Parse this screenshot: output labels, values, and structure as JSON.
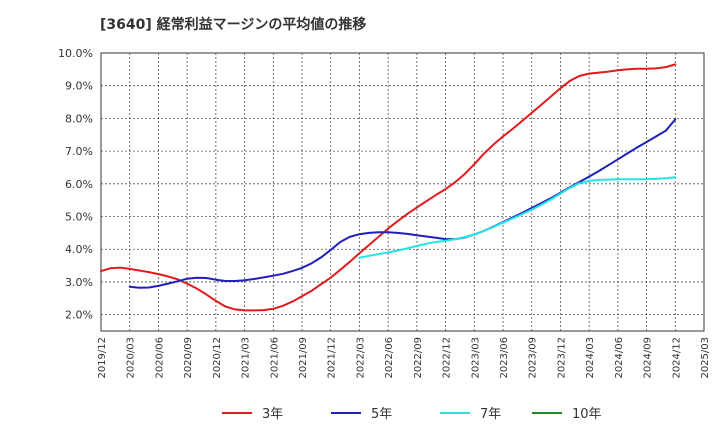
{
  "chart_data": {
    "type": "line",
    "title": "[3640]  経常利益マージンの平均値の推移",
    "xlabel": "",
    "ylabel": "",
    "ylim": [
      1.5,
      10.0
    ],
    "yticks": [
      "2.0%",
      "3.0%",
      "4.0%",
      "5.0%",
      "6.0%",
      "7.0%",
      "8.0%",
      "9.0%",
      "10.0%"
    ],
    "ytick_values": [
      2,
      3,
      4,
      5,
      6,
      7,
      8,
      9,
      10
    ],
    "xticks": [
      "2019/12",
      "2020/03",
      "2020/06",
      "2020/09",
      "2020/12",
      "2021/03",
      "2021/06",
      "2021/09",
      "2021/12",
      "2022/03",
      "2022/06",
      "2022/09",
      "2022/12",
      "2023/03",
      "2023/06",
      "2023/09",
      "2023/12",
      "2024/03",
      "2024/06",
      "2024/09",
      "2024/12",
      "2025/03"
    ],
    "grid": true,
    "legend_position": "bottom",
    "series": [
      {
        "name": "3年",
        "color": "#e31a1c",
        "values": [
          [
            "2019/12",
            3.33
          ],
          [
            "2020/01",
            3.42
          ],
          [
            "2020/02",
            3.44
          ],
          [
            "2020/03",
            3.4
          ],
          [
            "2020/04",
            3.35
          ],
          [
            "2020/05",
            3.3
          ],
          [
            "2020/06",
            3.24
          ],
          [
            "2020/07",
            3.17
          ],
          [
            "2020/08",
            3.08
          ],
          [
            "2020/09",
            2.95
          ],
          [
            "2020/10",
            2.8
          ],
          [
            "2020/11",
            2.62
          ],
          [
            "2020/12",
            2.42
          ],
          [
            "2021/01",
            2.25
          ],
          [
            "2021/02",
            2.16
          ],
          [
            "2021/03",
            2.13
          ],
          [
            "2021/04",
            2.13
          ],
          [
            "2021/05",
            2.14
          ],
          [
            "2021/06",
            2.18
          ],
          [
            "2021/07",
            2.27
          ],
          [
            "2021/08",
            2.4
          ],
          [
            "2021/09",
            2.56
          ],
          [
            "2021/10",
            2.73
          ],
          [
            "2021/11",
            2.93
          ],
          [
            "2021/12",
            3.13
          ],
          [
            "2022/01",
            3.37
          ],
          [
            "2022/02",
            3.62
          ],
          [
            "2022/03",
            3.88
          ],
          [
            "2022/04",
            4.13
          ],
          [
            "2022/05",
            4.38
          ],
          [
            "2022/06",
            4.63
          ],
          [
            "2022/07",
            4.86
          ],
          [
            "2022/08",
            5.08
          ],
          [
            "2022/09",
            5.28
          ],
          [
            "2022/10",
            5.47
          ],
          [
            "2022/11",
            5.66
          ],
          [
            "2022/12",
            5.84
          ],
          [
            "2023/01",
            6.05
          ],
          [
            "2023/02",
            6.3
          ],
          [
            "2023/03",
            6.6
          ],
          [
            "2023/04",
            6.92
          ],
          [
            "2023/05",
            7.2
          ],
          [
            "2023/06",
            7.45
          ],
          [
            "2023/07",
            7.68
          ],
          [
            "2023/08",
            7.92
          ],
          [
            "2023/09",
            8.17
          ],
          [
            "2023/10",
            8.42
          ],
          [
            "2023/11",
            8.67
          ],
          [
            "2023/12",
            8.92
          ],
          [
            "2024/01",
            9.15
          ],
          [
            "2024/02",
            9.3
          ],
          [
            "2024/03",
            9.37
          ],
          [
            "2024/04",
            9.4
          ],
          [
            "2024/05",
            9.43
          ],
          [
            "2024/06",
            9.47
          ],
          [
            "2024/07",
            9.5
          ],
          [
            "2024/08",
            9.52
          ],
          [
            "2024/09",
            9.52
          ],
          [
            "2024/10",
            9.53
          ],
          [
            "2024/11",
            9.57
          ],
          [
            "2024/12",
            9.65
          ]
        ]
      },
      {
        "name": "5年",
        "color": "#1f1fbf",
        "values": [
          [
            "2020/03",
            2.85
          ],
          [
            "2020/04",
            2.82
          ],
          [
            "2020/05",
            2.83
          ],
          [
            "2020/06",
            2.88
          ],
          [
            "2020/07",
            2.95
          ],
          [
            "2020/08",
            3.02
          ],
          [
            "2020/09",
            3.1
          ],
          [
            "2020/10",
            3.13
          ],
          [
            "2020/11",
            3.12
          ],
          [
            "2020/12",
            3.07
          ],
          [
            "2021/01",
            3.03
          ],
          [
            "2021/02",
            3.03
          ],
          [
            "2021/03",
            3.05
          ],
          [
            "2021/04",
            3.09
          ],
          [
            "2021/05",
            3.14
          ],
          [
            "2021/06",
            3.19
          ],
          [
            "2021/07",
            3.25
          ],
          [
            "2021/08",
            3.33
          ],
          [
            "2021/09",
            3.43
          ],
          [
            "2021/10",
            3.57
          ],
          [
            "2021/11",
            3.75
          ],
          [
            "2021/12",
            3.98
          ],
          [
            "2022/01",
            4.22
          ],
          [
            "2022/02",
            4.38
          ],
          [
            "2022/03",
            4.46
          ],
          [
            "2022/04",
            4.5
          ],
          [
            "2022/05",
            4.52
          ],
          [
            "2022/06",
            4.52
          ],
          [
            "2022/07",
            4.5
          ],
          [
            "2022/08",
            4.47
          ],
          [
            "2022/09",
            4.43
          ],
          [
            "2022/10",
            4.39
          ],
          [
            "2022/11",
            4.35
          ],
          [
            "2022/12",
            4.31
          ],
          [
            "2023/01",
            4.31
          ],
          [
            "2023/02",
            4.36
          ],
          [
            "2023/03",
            4.45
          ],
          [
            "2023/04",
            4.56
          ],
          [
            "2023/05",
            4.69
          ],
          [
            "2023/06",
            4.83
          ],
          [
            "2023/07",
            4.97
          ],
          [
            "2023/08",
            5.11
          ],
          [
            "2023/09",
            5.26
          ],
          [
            "2023/10",
            5.41
          ],
          [
            "2023/11",
            5.56
          ],
          [
            "2023/12",
            5.73
          ],
          [
            "2024/01",
            5.9
          ],
          [
            "2024/02",
            6.06
          ],
          [
            "2024/03",
            6.22
          ],
          [
            "2024/04",
            6.39
          ],
          [
            "2024/05",
            6.57
          ],
          [
            "2024/06",
            6.75
          ],
          [
            "2024/07",
            6.93
          ],
          [
            "2024/08",
            7.11
          ],
          [
            "2024/09",
            7.28
          ],
          [
            "2024/10",
            7.45
          ],
          [
            "2024/11",
            7.62
          ],
          [
            "2024/12",
            7.97
          ]
        ]
      },
      {
        "name": "7年",
        "color": "#22e5e5",
        "values": [
          [
            "2022/03",
            3.74
          ],
          [
            "2022/04",
            3.8
          ],
          [
            "2022/05",
            3.85
          ],
          [
            "2022/06",
            3.9
          ],
          [
            "2022/07",
            3.96
          ],
          [
            "2022/08",
            4.03
          ],
          [
            "2022/09",
            4.1
          ],
          [
            "2022/10",
            4.17
          ],
          [
            "2022/11",
            4.22
          ],
          [
            "2022/12",
            4.26
          ],
          [
            "2023/01",
            4.31
          ],
          [
            "2023/02",
            4.37
          ],
          [
            "2023/03",
            4.45
          ],
          [
            "2023/04",
            4.56
          ],
          [
            "2023/05",
            4.68
          ],
          [
            "2023/06",
            4.81
          ],
          [
            "2023/07",
            4.94
          ],
          [
            "2023/08",
            5.07
          ],
          [
            "2023/09",
            5.21
          ],
          [
            "2023/10",
            5.36
          ],
          [
            "2023/11",
            5.52
          ],
          [
            "2023/12",
            5.7
          ],
          [
            "2024/01",
            5.88
          ],
          [
            "2024/02",
            6.02
          ],
          [
            "2024/03",
            6.09
          ],
          [
            "2024/04",
            6.12
          ],
          [
            "2024/05",
            6.13
          ],
          [
            "2024/06",
            6.14
          ],
          [
            "2024/07",
            6.14
          ],
          [
            "2024/08",
            6.14
          ],
          [
            "2024/09",
            6.14
          ],
          [
            "2024/10",
            6.15
          ],
          [
            "2024/11",
            6.17
          ],
          [
            "2024/12",
            6.2
          ]
        ]
      },
      {
        "name": "10年",
        "color": "#228b22",
        "values": []
      }
    ]
  }
}
